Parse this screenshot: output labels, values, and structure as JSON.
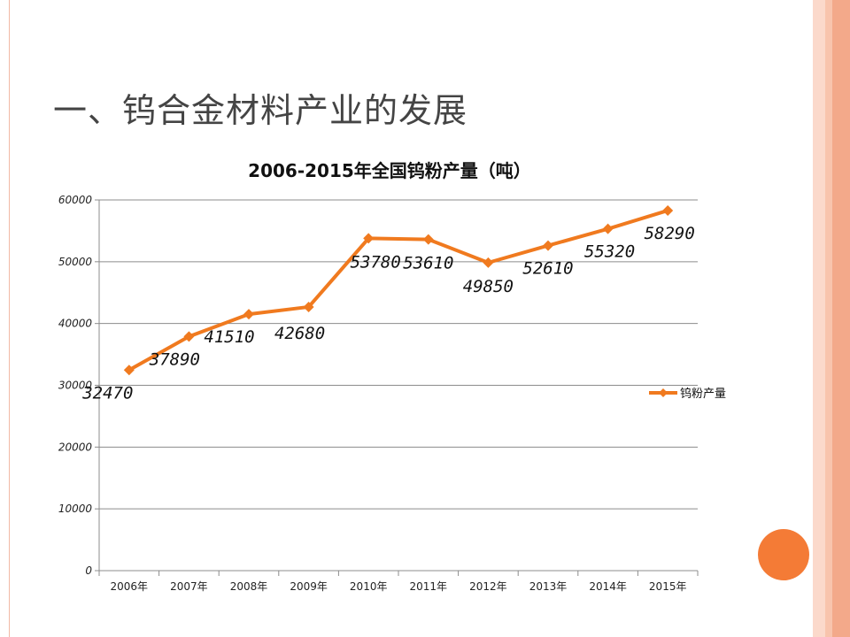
{
  "slide": {
    "title": "一、钨合金材料产业的发展"
  },
  "colors": {
    "accent": "#f07a1f",
    "stripe_light": "#fbd9cb",
    "stripe_dark": "#f3a98a",
    "circle": "#f47b36"
  },
  "chart_data": {
    "type": "line",
    "title": "2006-2015年全国钨粉产量（吨）",
    "categories": [
      "2006年",
      "2007年",
      "2008年",
      "2009年",
      "2010年",
      "2011年",
      "2012年",
      "2013年",
      "2014年",
      "2015年"
    ],
    "series": [
      {
        "name": "钨粉产量",
        "values": [
          32470,
          37890,
          41510,
          42680,
          53780,
          53610,
          49850,
          52610,
          55320,
          58290
        ],
        "color": "#f07a1f",
        "marker": "diamond"
      }
    ],
    "yticks": [
      0,
      10000,
      20000,
      30000,
      40000,
      50000,
      60000
    ],
    "ylim": [
      0,
      60000
    ],
    "grid": true,
    "legend": "right",
    "data_labels": true
  }
}
